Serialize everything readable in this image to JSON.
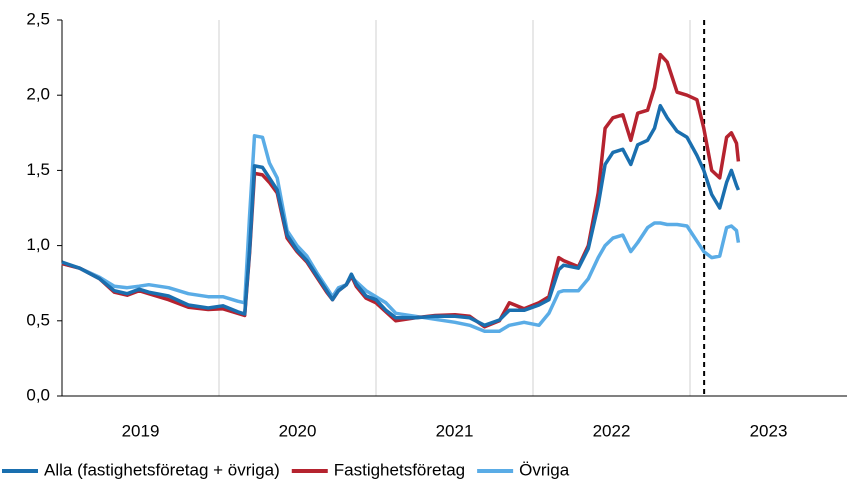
{
  "chart_data": {
    "type": "line",
    "x": [
      2019.0,
      2019.113,
      2019.239,
      2019.333,
      2019.415,
      2019.491,
      2019.553,
      2019.679,
      2019.805,
      2019.931,
      2020.025,
      2020.119,
      2020.164,
      2020.195,
      2020.226,
      2020.277,
      2020.321,
      2020.371,
      2020.434,
      2020.497,
      2020.56,
      2020.623,
      2020.686,
      2020.723,
      2020.761,
      2020.811,
      2020.843,
      2020.874,
      2020.937,
      2021.0,
      2021.063,
      2021.126,
      2021.252,
      2021.377,
      2021.503,
      2021.597,
      2021.692,
      2021.786,
      2021.849,
      2021.943,
      2022.038,
      2022.101,
      2022.164,
      2022.195,
      2022.289,
      2022.352,
      2022.415,
      2022.459,
      2022.509,
      2022.572,
      2022.623,
      2022.667,
      2022.73,
      2022.774,
      2022.811,
      2022.855,
      2022.918,
      2022.981,
      2023.044,
      2023.088,
      2023.138,
      2023.189,
      2023.233,
      2023.264,
      2023.296,
      2023.308
    ],
    "series": [
      {
        "name": "Alla (fastighetsföretag + övriga)",
        "color": "#1a6faf",
        "values": [
          0.89,
          0.85,
          0.78,
          0.7,
          0.68,
          0.71,
          0.69,
          0.665,
          0.605,
          0.585,
          0.6,
          0.56,
          0.545,
          0.97,
          1.53,
          1.52,
          1.45,
          1.37,
          1.07,
          0.97,
          0.9,
          0.8,
          0.7,
          0.64,
          0.7,
          0.74,
          0.81,
          0.745,
          0.665,
          0.64,
          0.57,
          0.52,
          0.52,
          0.53,
          0.53,
          0.52,
          0.47,
          0.505,
          0.57,
          0.57,
          0.605,
          0.64,
          0.84,
          0.87,
          0.85,
          0.98,
          1.27,
          1.54,
          1.62,
          1.64,
          1.54,
          1.67,
          1.7,
          1.78,
          1.93,
          1.85,
          1.76,
          1.72,
          1.6,
          1.5,
          1.34,
          1.25,
          1.42,
          1.5,
          1.4,
          1.37
        ]
      },
      {
        "name": "Fastighetsföretag",
        "color": "#b5232f",
        "values": [
          0.88,
          0.85,
          0.78,
          0.69,
          0.67,
          0.7,
          0.68,
          0.64,
          0.59,
          0.575,
          0.58,
          0.55,
          0.535,
          0.95,
          1.48,
          1.47,
          1.42,
          1.35,
          1.05,
          0.96,
          0.89,
          0.79,
          0.69,
          0.64,
          0.7,
          0.74,
          0.8,
          0.73,
          0.65,
          0.62,
          0.56,
          0.5,
          0.52,
          0.535,
          0.54,
          0.53,
          0.46,
          0.5,
          0.62,
          0.58,
          0.62,
          0.66,
          0.92,
          0.9,
          0.86,
          1.0,
          1.35,
          1.78,
          1.85,
          1.87,
          1.7,
          1.88,
          1.9,
          2.05,
          2.27,
          2.22,
          2.02,
          2.0,
          1.97,
          1.78,
          1.5,
          1.45,
          1.72,
          1.75,
          1.68,
          1.56
        ]
      },
      {
        "name": "Övriga",
        "color": "#5aace6",
        "values": [
          0.88,
          0.85,
          0.79,
          0.73,
          0.72,
          0.73,
          0.74,
          0.72,
          0.68,
          0.66,
          0.66,
          0.63,
          0.62,
          1.2,
          1.73,
          1.72,
          1.55,
          1.45,
          1.1,
          1.0,
          0.93,
          0.82,
          0.72,
          0.66,
          0.72,
          0.74,
          0.79,
          0.76,
          0.7,
          0.66,
          0.62,
          0.55,
          0.53,
          0.51,
          0.49,
          0.47,
          0.43,
          0.43,
          0.47,
          0.49,
          0.47,
          0.55,
          0.69,
          0.7,
          0.7,
          0.78,
          0.92,
          1.0,
          1.05,
          1.07,
          0.96,
          1.02,
          1.12,
          1.15,
          1.15,
          1.14,
          1.14,
          1.13,
          1.03,
          0.96,
          0.92,
          0.93,
          1.12,
          1.13,
          1.1,
          1.02
        ]
      }
    ],
    "xlim": [
      2019,
      2024
    ],
    "xgrid": [
      2020,
      2021,
      2022,
      2023
    ],
    "year_labels": [
      "2019",
      "2020",
      "2021",
      "2022",
      "2023"
    ],
    "vline": 2023.09,
    "ylim": [
      0,
      2.5
    ],
    "yticks": [
      {
        "value": 0,
        "label": "0,0"
      },
      {
        "value": 0.5,
        "label": "0,5"
      },
      {
        "value": 1,
        "label": "1,0"
      },
      {
        "value": 1.5,
        "label": "1,5"
      },
      {
        "value": 2,
        "label": "2,0"
      },
      {
        "value": 2.5,
        "label": "2,5"
      }
    ],
    "grid": true
  }
}
